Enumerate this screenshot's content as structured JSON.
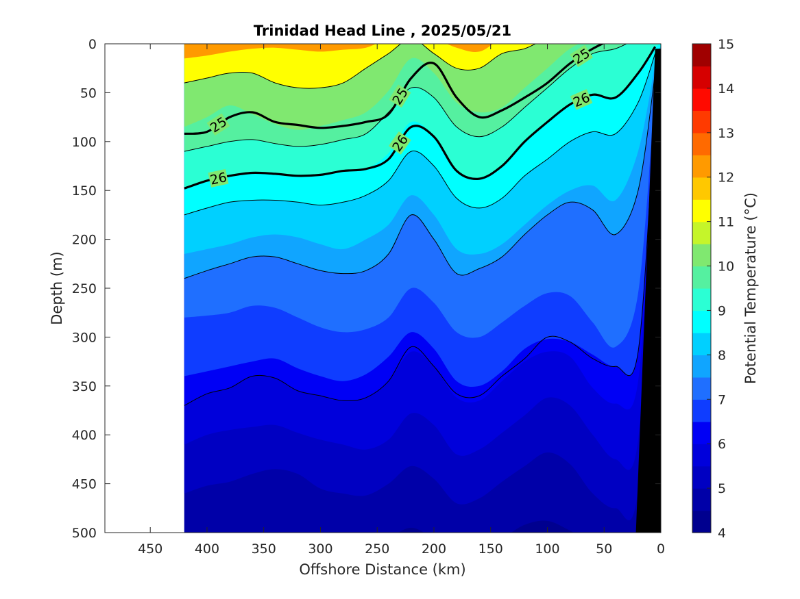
{
  "chart_data": {
    "type": "contour",
    "title": "Trinidad Head Line , 2025/05/21",
    "xlabel": "Offshore Distance (km)",
    "ylabel": "Depth (m)",
    "colorbar_label": "Potential Temperature (°C)",
    "x_reversed": true,
    "y_reversed": true,
    "xlim": [
      490,
      0
    ],
    "ylim": [
      0,
      500
    ],
    "data_xrange": [
      420,
      0
    ],
    "x_ticks": [
      450,
      400,
      350,
      300,
      250,
      200,
      150,
      100,
      50,
      0
    ],
    "y_ticks": [
      0,
      50,
      100,
      150,
      200,
      250,
      300,
      350,
      400,
      450,
      500
    ],
    "colorbar": {
      "min": 4,
      "max": 15,
      "step": 0.5,
      "ticks": [
        4,
        5,
        6,
        7,
        8,
        9,
        10,
        11,
        12,
        13,
        14,
        15
      ],
      "levels": [
        {
          "from": 4.0,
          "to": 4.5,
          "color": "#00008f"
        },
        {
          "from": 4.5,
          "to": 5.0,
          "color": "#0000a8"
        },
        {
          "from": 5.0,
          "to": 5.5,
          "color": "#0000c2"
        },
        {
          "from": 5.5,
          "to": 6.0,
          "color": "#0000db"
        },
        {
          "from": 6.0,
          "to": 6.5,
          "color": "#0000f5"
        },
        {
          "from": 6.5,
          "to": 7.0,
          "color": "#0f3dff"
        },
        {
          "from": 7.0,
          "to": 7.5,
          "color": "#1f6fff"
        },
        {
          "from": 7.5,
          "to": 8.0,
          "color": "#10a5ff"
        },
        {
          "from": 8.0,
          "to": 8.5,
          "color": "#00d0ff"
        },
        {
          "from": 8.5,
          "to": 9.0,
          "color": "#00ffff"
        },
        {
          "from": 9.0,
          "to": 9.5,
          "color": "#2bffd4"
        },
        {
          "from": 9.5,
          "to": 10.0,
          "color": "#55f0a0"
        },
        {
          "from": 10.0,
          "to": 10.5,
          "color": "#80e870"
        },
        {
          "from": 10.5,
          "to": 11.0,
          "color": "#c5f52a"
        },
        {
          "from": 11.0,
          "to": 11.5,
          "color": "#ffff00"
        },
        {
          "from": 11.5,
          "to": 12.0,
          "color": "#ffc800"
        },
        {
          "from": 12.0,
          "to": 12.5,
          "color": "#ff9a00"
        },
        {
          "from": 12.5,
          "to": 13.0,
          "color": "#ff6a00"
        },
        {
          "from": 13.0,
          "to": 13.5,
          "color": "#ff3a00"
        },
        {
          "from": 13.5,
          "to": 14.0,
          "color": "#ff0a00"
        },
        {
          "from": 14.0,
          "to": 14.5,
          "color": "#d60000"
        },
        {
          "from": 14.5,
          "to": 15.0,
          "color": "#a00000"
        }
      ]
    },
    "isotherm_depths": {
      "x": [
        420,
        400,
        380,
        360,
        340,
        320,
        300,
        280,
        260,
        240,
        220,
        200,
        180,
        160,
        140,
        120,
        100,
        80,
        60,
        40,
        20,
        5
      ],
      "series": [
        {
          "temperature": 13.0,
          "depth": [
            -5,
            -5,
            -5,
            -5,
            -5,
            -5,
            -5,
            -5,
            -5,
            -5,
            -5,
            -5,
            -5,
            -5,
            -5,
            -5,
            -5,
            -5,
            -5,
            -5,
            -5,
            -5
          ]
        },
        {
          "temperature": 12.0,
          "depth": [
            15,
            12,
            8,
            5,
            4,
            6,
            8,
            6,
            4,
            -5,
            -5,
            -5,
            4,
            8,
            -5,
            -5,
            -5,
            -5,
            -5,
            -5,
            -5,
            -5
          ]
        },
        {
          "temperature": 11.0,
          "depth": [
            40,
            35,
            30,
            30,
            40,
            45,
            45,
            40,
            25,
            10,
            -5,
            10,
            25,
            25,
            10,
            5,
            -5,
            -5,
            -5,
            -5,
            -5,
            -5
          ]
        },
        {
          "temperature": 10.0,
          "depth": [
            85,
            75,
            63,
            72,
            82,
            88,
            84,
            78,
            70,
            48,
            15,
            30,
            60,
            70,
            65,
            45,
            25,
            5,
            -5,
            -5,
            -5,
            -5
          ]
        },
        {
          "temperature": 9.5,
          "depth": [
            110,
            105,
            100,
            98,
            102,
            105,
            103,
            98,
            92,
            70,
            45,
            55,
            85,
            95,
            85,
            65,
            45,
            25,
            10,
            5,
            -5,
            -5
          ]
        },
        {
          "temperature": 9.0,
          "depth": [
            148,
            140,
            135,
            132,
            133,
            135,
            134,
            130,
            128,
            112,
            80,
            95,
            130,
            138,
            125,
            100,
            80,
            62,
            52,
            55,
            30,
            3
          ]
        },
        {
          "temperature": 8.5,
          "depth": [
            175,
            168,
            162,
            160,
            160,
            162,
            165,
            162,
            155,
            140,
            110,
            125,
            158,
            168,
            158,
            135,
            118,
            100,
            90,
            92,
            60,
            10
          ]
        },
        {
          "temperature": 8.0,
          "depth": [
            215,
            210,
            205,
            198,
            195,
            198,
            205,
            210,
            200,
            185,
            155,
            175,
            210,
            215,
            205,
            185,
            165,
            150,
            145,
            160,
            110,
            20
          ]
        },
        {
          "temperature": 7.5,
          "depth": [
            240,
            232,
            225,
            218,
            218,
            225,
            232,
            235,
            232,
            215,
            175,
            200,
            235,
            230,
            218,
            195,
            175,
            162,
            170,
            195,
            150,
            30
          ]
        },
        {
          "temperature": 7.0,
          "depth": [
            280,
            278,
            275,
            268,
            270,
            280,
            290,
            295,
            292,
            280,
            250,
            265,
            295,
            300,
            285,
            268,
            255,
            258,
            285,
            310,
            255,
            45
          ]
        },
        {
          "temperature": 6.5,
          "depth": [
            340,
            335,
            330,
            325,
            322,
            332,
            340,
            345,
            338,
            320,
            295,
            312,
            345,
            350,
            335,
            312,
            302,
            305,
            318,
            330,
            315,
            60
          ]
        },
        {
          "temperature": 6.0,
          "depth": [
            370,
            358,
            352,
            340,
            342,
            355,
            360,
            365,
            362,
            345,
            315,
            330,
            362,
            365,
            345,
            325,
            315,
            320,
            352,
            368,
            345,
            80
          ]
        },
        {
          "temperature": 5.5,
          "depth": [
            410,
            400,
            395,
            392,
            390,
            398,
            405,
            410,
            415,
            405,
            378,
            390,
            420,
            415,
            398,
            380,
            362,
            370,
            400,
            425,
            405,
            100
          ]
        },
        {
          "temperature": 5.0,
          "depth": [
            460,
            452,
            448,
            440,
            435,
            440,
            455,
            460,
            462,
            450,
            432,
            445,
            470,
            465,
            448,
            432,
            418,
            430,
            460,
            475,
            455,
            120
          ]
        },
        {
          "temperature": 4.5,
          "depth": [
            510,
            510,
            510,
            510,
            510,
            510,
            510,
            510,
            510,
            505,
            495,
            505,
            510,
            510,
            505,
            492,
            488,
            498,
            510,
            510,
            510,
            140
          ]
        }
      ]
    },
    "density_contours": {
      "labeled": [
        {
          "label": "25",
          "depth": [
            92,
            90,
            75,
            70,
            80,
            83,
            86,
            84,
            80,
            72,
            35,
            20,
            55,
            75,
            68,
            55,
            40,
            20,
            5,
            -5,
            -5,
            -5
          ]
        },
        {
          "label": "26",
          "depth": [
            148,
            140,
            135,
            132,
            133,
            135,
            134,
            130,
            128,
            118,
            85,
            95,
            130,
            138,
            125,
            100,
            80,
            62,
            52,
            55,
            30,
            3
          ]
        }
      ],
      "thin": [
        {
          "depth": [
            240,
            232,
            225,
            218,
            218,
            225,
            232,
            235,
            232,
            215,
            175,
            200,
            235,
            230,
            218,
            195,
            175,
            162,
            170,
            195,
            150,
            30
          ]
        },
        {
          "depth": [
            370,
            358,
            352,
            340,
            342,
            355,
            360,
            365,
            362,
            345,
            310,
            330,
            358,
            360,
            340,
            322,
            300,
            305,
            322,
            330,
            315,
            60
          ]
        },
        {
          "depth": [
            175,
            168,
            162,
            160,
            160,
            162,
            165,
            162,
            155,
            140,
            110,
            125,
            158,
            168,
            158,
            135,
            118,
            100,
            90,
            92,
            60,
            10
          ]
        },
        {
          "depth": [
            110,
            105,
            100,
            98,
            102,
            105,
            103,
            98,
            92,
            70,
            45,
            55,
            85,
            95,
            85,
            65,
            45,
            25,
            10,
            5,
            -5,
            -5
          ]
        },
        {
          "depth": [
            40,
            35,
            30,
            30,
            40,
            45,
            45,
            40,
            25,
            10,
            -5,
            10,
            25,
            25,
            10,
            5,
            -5,
            -5,
            -5,
            -5,
            -5,
            -5
          ]
        }
      ]
    },
    "bathymetry": {
      "x": [
        22,
        5,
        0
      ],
      "depth": [
        500,
        5,
        5
      ],
      "color": "#000000"
    }
  }
}
